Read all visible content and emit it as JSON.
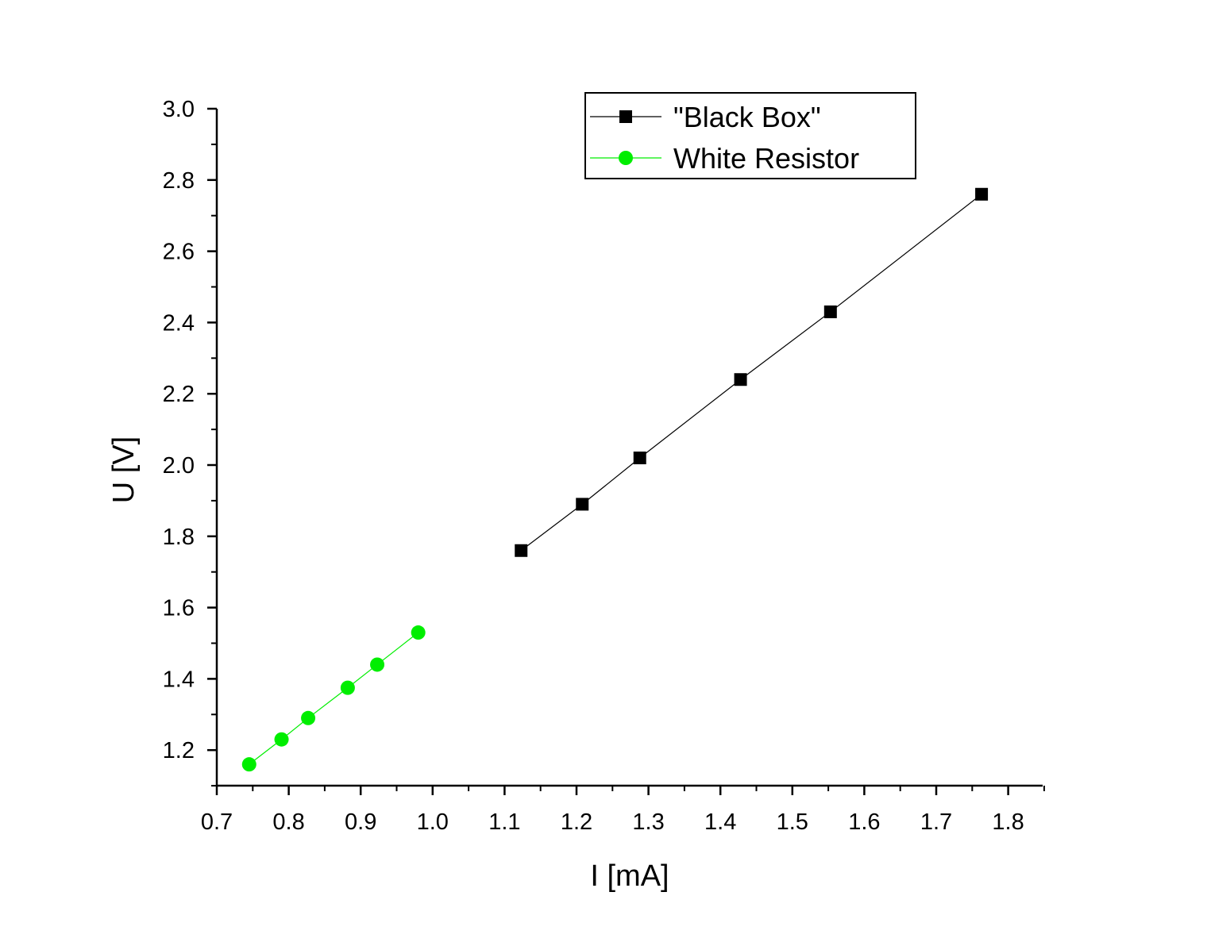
{
  "chart_data": {
    "type": "line",
    "xlabel": "I [mA]",
    "ylabel": "U [V]",
    "xlim": [
      0.7,
      1.85
    ],
    "ylim": [
      1.1,
      3.0
    ],
    "xticks": [
      "0.7",
      "0.8",
      "0.9",
      "1.0",
      "1.1",
      "1.2",
      "1.3",
      "1.4",
      "1.5",
      "1.6",
      "1.7",
      "1.8"
    ],
    "yticks": [
      "1.2",
      "1.4",
      "1.6",
      "1.8",
      "2.0",
      "2.2",
      "2.4",
      "2.6",
      "2.8",
      "3.0"
    ],
    "grid": false,
    "legend_position": "top-right",
    "series": [
      {
        "name": "\"Black Box\"",
        "marker": "square",
        "color": "#000000",
        "x": [
          1.123,
          1.208,
          1.288,
          1.428,
          1.553,
          1.763
        ],
        "y": [
          1.76,
          1.89,
          2.02,
          2.24,
          2.43,
          2.76
        ]
      },
      {
        "name": "White Resistor",
        "marker": "circle",
        "color": "#00ee00",
        "x": [
          0.745,
          0.79,
          0.827,
          0.882,
          0.923,
          0.98
        ],
        "y": [
          1.16,
          1.23,
          1.29,
          1.375,
          1.44,
          1.53
        ]
      }
    ]
  }
}
